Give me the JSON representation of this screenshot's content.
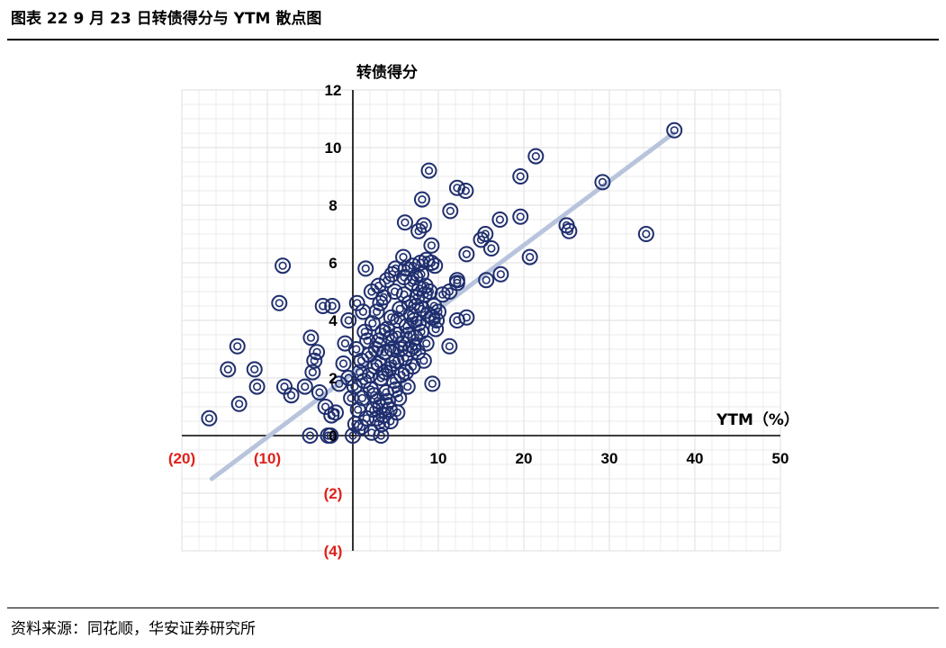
{
  "header": {
    "title": "图表 22 9 月 23 日转债得分与 YTM 散点图"
  },
  "footer": {
    "source": "资料来源：同花顺，华安证券研究所"
  },
  "chart_data": {
    "type": "scatter",
    "title": "",
    "xlabel": "YTM（%）",
    "ylabel": "转债得分",
    "xlim": [
      -20,
      50
    ],
    "ylim": [
      -4,
      12
    ],
    "x_ticks": [
      "(20)",
      "(10)",
      "0",
      "10",
      "20",
      "30",
      "40",
      "50"
    ],
    "y_ticks": [
      "(4)",
      "(2)",
      "0",
      "2",
      "4",
      "6",
      "8",
      "10",
      "12"
    ],
    "grid": true,
    "legend": "none",
    "colors": {
      "marker": "#1f2e6e",
      "trendline": "#b8c4dc",
      "negative_tick": "#e0201b",
      "grid": "#e4e4e4"
    },
    "trendline": {
      "x": [
        -16.5,
        37.5
      ],
      "y": [
        -1.5,
        10.5
      ]
    },
    "series": [
      {
        "points": [
          [
            -16.8,
            0.6
          ],
          [
            -13.3,
            1.1
          ],
          [
            -14.6,
            2.3
          ],
          [
            -13.5,
            3.1
          ],
          [
            -11.5,
            2.3
          ],
          [
            -11.2,
            1.7
          ],
          [
            -8.2,
            5.9
          ],
          [
            -8.6,
            4.6
          ],
          [
            -8.0,
            1.7
          ],
          [
            -7.2,
            1.4
          ],
          [
            -5.6,
            1.7
          ],
          [
            -4.9,
            3.4
          ],
          [
            -4.5,
            2.6
          ],
          [
            -4.7,
            2.2
          ],
          [
            -4.2,
            2.9
          ],
          [
            -3.5,
            4.5
          ],
          [
            -2.4,
            4.5
          ],
          [
            -3.9,
            1.5
          ],
          [
            -3.2,
            1.0
          ],
          [
            -2.5,
            0.7
          ],
          [
            -2.0,
            0.8
          ],
          [
            -1.6,
            1.8
          ],
          [
            -1.1,
            2.5
          ],
          [
            -0.9,
            3.2
          ],
          [
            -0.5,
            2.0
          ],
          [
            -0.2,
            1.3
          ],
          [
            -5.0,
            0.0
          ],
          [
            -2.9,
            0.0
          ],
          [
            -2.6,
            0.0
          ],
          [
            0.0,
            0.0
          ],
          [
            2.2,
            0.1
          ],
          [
            3.3,
            0.0
          ],
          [
            1.5,
            5.8
          ],
          [
            3.0,
            5.2
          ],
          [
            4.6,
            5.6
          ],
          [
            5.9,
            6.2
          ],
          [
            6.2,
            5.8
          ],
          [
            7.3,
            5.5
          ],
          [
            7.9,
            6.0
          ],
          [
            8.6,
            6.1
          ],
          [
            9.2,
            6.0
          ],
          [
            9.6,
            5.9
          ],
          [
            9.3,
            4.1
          ],
          [
            9.2,
            6.6
          ],
          [
            6.1,
            7.4
          ],
          [
            8.1,
            8.2
          ],
          [
            7.7,
            7.1
          ],
          [
            8.3,
            7.3
          ],
          [
            8.9,
            9.2
          ],
          [
            11.4,
            7.8
          ],
          [
            12.2,
            8.6
          ],
          [
            13.2,
            8.5
          ],
          [
            12.2,
            5.3
          ],
          [
            12.2,
            5.4
          ],
          [
            11.3,
            5.0
          ],
          [
            12.2,
            4.0
          ],
          [
            13.3,
            4.1
          ],
          [
            11.3,
            3.1
          ],
          [
            9.7,
            3.7
          ],
          [
            9.3,
            1.8
          ],
          [
            13.3,
            6.3
          ],
          [
            15.0,
            6.8
          ],
          [
            15.5,
            7.0
          ],
          [
            16.2,
            6.5
          ],
          [
            17.2,
            7.5
          ],
          [
            17.3,
            5.6
          ],
          [
            15.6,
            5.4
          ],
          [
            19.6,
            9.0
          ],
          [
            19.6,
            7.6
          ],
          [
            20.7,
            6.2
          ],
          [
            21.4,
            9.7
          ],
          [
            25.0,
            7.3
          ],
          [
            25.3,
            7.1
          ],
          [
            29.2,
            8.8
          ],
          [
            34.3,
            7.0
          ],
          [
            37.6,
            10.6
          ],
          [
            0.4,
            3.0
          ],
          [
            0.8,
            2.2
          ],
          [
            1.1,
            1.3
          ],
          [
            1.4,
            3.6
          ],
          [
            1.6,
            0.6
          ],
          [
            1.9,
            2.8
          ],
          [
            2.1,
            1.6
          ],
          [
            2.3,
            3.9
          ],
          [
            2.4,
            0.9
          ],
          [
            2.6,
            2.4
          ],
          [
            2.8,
            4.3
          ],
          [
            2.9,
            1.2
          ],
          [
            3.1,
            3.3
          ],
          [
            3.3,
            2.0
          ],
          [
            3.4,
            0.4
          ],
          [
            3.6,
            4.8
          ],
          [
            3.7,
            2.9
          ],
          [
            3.9,
            1.5
          ],
          [
            4.0,
            3.7
          ],
          [
            4.2,
            2.3
          ],
          [
            4.3,
            0.9
          ],
          [
            4.5,
            4.1
          ],
          [
            4.6,
            3.0
          ],
          [
            4.8,
            1.9
          ],
          [
            4.9,
            5.0
          ],
          [
            5.1,
            2.6
          ],
          [
            5.2,
            3.5
          ],
          [
            5.4,
            1.3
          ],
          [
            5.5,
            4.4
          ],
          [
            5.7,
            2.1
          ],
          [
            5.8,
            3.2
          ],
          [
            6.0,
            4.9
          ],
          [
            6.1,
            2.7
          ],
          [
            6.3,
            3.8
          ],
          [
            6.4,
            1.7
          ],
          [
            6.6,
            4.6
          ],
          [
            6.7,
            3.0
          ],
          [
            6.9,
            5.3
          ],
          [
            7.0,
            2.4
          ],
          [
            7.2,
            4.0
          ],
          [
            7.3,
            3.4
          ],
          [
            7.5,
            4.8
          ],
          [
            7.6,
            2.9
          ],
          [
            7.8,
            5.1
          ],
          [
            8.0,
            3.6
          ],
          [
            8.1,
            4.4
          ],
          [
            8.3,
            2.6
          ],
          [
            8.4,
            4.9
          ],
          [
            8.6,
            3.2
          ],
          [
            8.8,
            4.2
          ],
          [
            9.0,
            5.0
          ],
          [
            9.5,
            4.5
          ],
          [
            10.0,
            4.3
          ],
          [
            10.5,
            4.9
          ],
          [
            0.2,
            1.7
          ],
          [
            0.6,
            0.9
          ],
          [
            1.0,
            2.6
          ],
          [
            1.3,
            1.9
          ],
          [
            1.7,
            3.3
          ],
          [
            2.0,
            2.1
          ],
          [
            2.5,
            1.4
          ],
          [
            2.7,
            3.0
          ],
          [
            3.0,
            2.5
          ],
          [
            3.2,
            1.0
          ],
          [
            3.5,
            3.6
          ],
          [
            3.8,
            2.2
          ],
          [
            4.1,
            1.2
          ],
          [
            4.4,
            3.4
          ],
          [
            4.7,
            2.5
          ],
          [
            5.0,
            1.6
          ],
          [
            5.3,
            4.0
          ],
          [
            5.6,
            3.0
          ],
          [
            6.2,
            2.2
          ],
          [
            6.5,
            3.5
          ],
          [
            6.8,
            4.2
          ],
          [
            7.1,
            3.1
          ],
          [
            7.4,
            4.5
          ],
          [
            7.7,
            3.9
          ],
          [
            -0.5,
            4.0
          ],
          [
            0.5,
            4.6
          ],
          [
            1.2,
            4.3
          ],
          [
            2.2,
            5.0
          ],
          [
            3.2,
            4.6
          ],
          [
            4.0,
            5.4
          ],
          [
            5.0,
            5.8
          ],
          [
            6.0,
            5.5
          ],
          [
            7.0,
            5.9
          ],
          [
            8.0,
            5.6
          ],
          [
            8.5,
            5.2
          ],
          [
            9.8,
            4.0
          ],
          [
            0.3,
            0.4
          ],
          [
            1.0,
            0.3
          ],
          [
            2.8,
            0.6
          ],
          [
            3.6,
            0.7
          ],
          [
            4.4,
            0.5
          ],
          [
            5.2,
            0.8
          ]
        ]
      }
    ]
  }
}
